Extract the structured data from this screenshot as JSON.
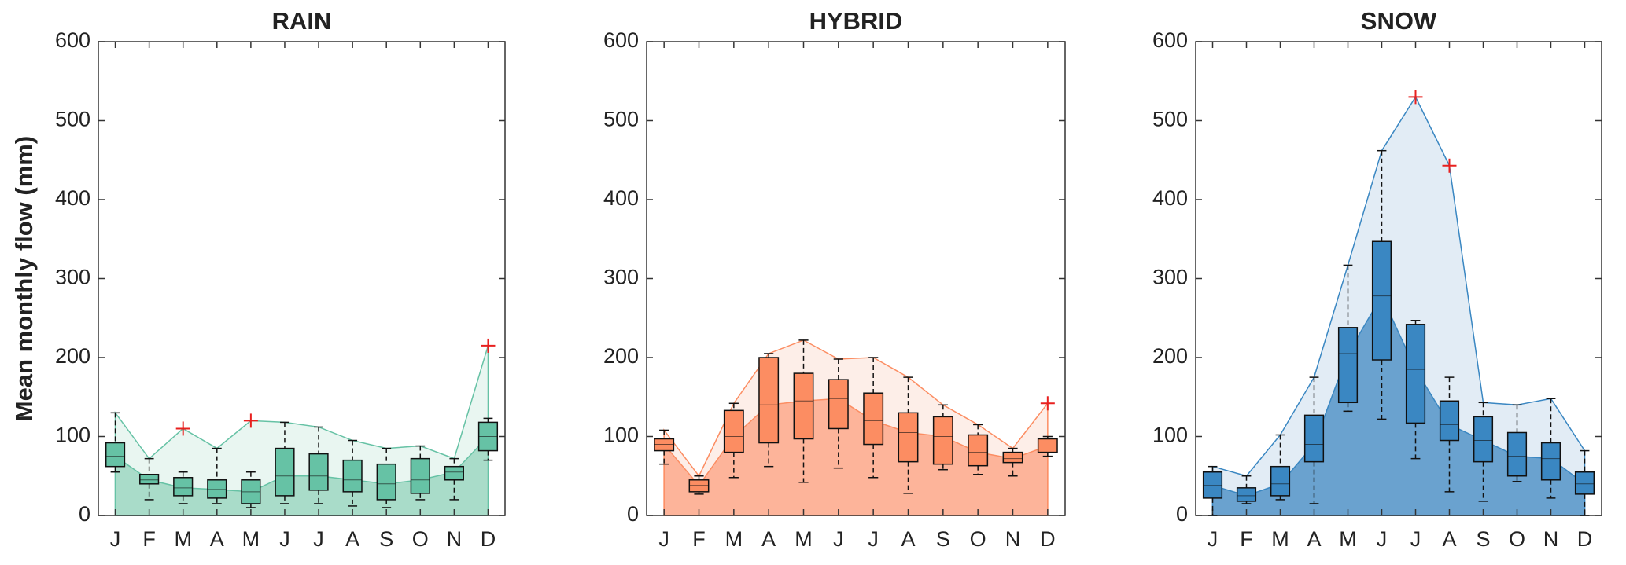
{
  "chart_data": [
    {
      "type": "box",
      "title": "RAIN",
      "ylabel": "Mean monthly flow (mm)",
      "categories": [
        "J",
        "F",
        "M",
        "A",
        "M",
        "J",
        "J",
        "A",
        "S",
        "O",
        "N",
        "D"
      ],
      "min": [
        55,
        20,
        15,
        15,
        10,
        15,
        15,
        12,
        10,
        20,
        20,
        70
      ],
      "q1": [
        62,
        40,
        25,
        22,
        15,
        25,
        32,
        30,
        20,
        28,
        45,
        82
      ],
      "median": [
        75,
        45,
        35,
        33,
        30,
        50,
        50,
        45,
        40,
        45,
        55,
        100
      ],
      "q3": [
        92,
        52,
        48,
        45,
        45,
        85,
        78,
        70,
        65,
        72,
        62,
        118
      ],
      "max": [
        130,
        72,
        55,
        85,
        55,
        118,
        112,
        95,
        85,
        88,
        72,
        123
      ],
      "outliers": [
        [],
        [],
        [
          110
        ],
        [],
        [
          120
        ],
        [],
        [],
        [],
        [],
        [],
        [],
        [
          215
        ]
      ],
      "color": "#66c2a5",
      "area_color": "#a9dcc9",
      "envelope_color": "#e9f6f1",
      "ylim": [
        0,
        600
      ],
      "yticks": [
        0,
        100,
        200,
        300,
        400,
        500,
        600
      ]
    },
    {
      "type": "box",
      "title": "HYBRID",
      "categories": [
        "J",
        "F",
        "M",
        "A",
        "M",
        "J",
        "J",
        "A",
        "S",
        "O",
        "N",
        "D"
      ],
      "min": [
        65,
        27,
        48,
        62,
        42,
        60,
        48,
        28,
        58,
        52,
        50,
        75
      ],
      "q1": [
        82,
        30,
        80,
        92,
        97,
        110,
        90,
        68,
        65,
        63,
        67,
        80
      ],
      "median": [
        90,
        38,
        100,
        140,
        145,
        148,
        120,
        105,
        100,
        80,
        72,
        88
      ],
      "q3": [
        97,
        45,
        133,
        200,
        180,
        172,
        155,
        130,
        125,
        102,
        80,
        97
      ],
      "max": [
        108,
        50,
        142,
        205,
        222,
        198,
        200,
        175,
        140,
        115,
        85,
        100
      ],
      "outliers": [
        [],
        [],
        [],
        [],
        [],
        [],
        [],
        [],
        [],
        [],
        [],
        [
          142
        ]
      ],
      "color": "#fc8d62",
      "area_color": "#fdb49a",
      "envelope_color": "#fdeee8",
      "ylim": [
        0,
        600
      ],
      "yticks": [
        0,
        100,
        200,
        300,
        400,
        500,
        600
      ]
    },
    {
      "type": "box",
      "title": "SNOW",
      "categories": [
        "J",
        "F",
        "M",
        "A",
        "M",
        "J",
        "J",
        "A",
        "S",
        "O",
        "N",
        "D"
      ],
      "min": [
        0,
        15,
        20,
        15,
        132,
        122,
        72,
        30,
        18,
        43,
        22,
        0
      ],
      "q1": [
        22,
        18,
        25,
        68,
        143,
        197,
        117,
        95,
        68,
        50,
        45,
        27
      ],
      "median": [
        38,
        25,
        40,
        90,
        205,
        278,
        185,
        115,
        95,
        75,
        72,
        40
      ],
      "q3": [
        55,
        35,
        62,
        127,
        238,
        347,
        242,
        145,
        125,
        105,
        92,
        55
      ],
      "max": [
        62,
        50,
        102,
        175,
        317,
        462,
        247,
        175,
        143,
        140,
        148,
        82
      ],
      "outliers": [
        [],
        [],
        [],
        [],
        [],
        [],
        [
          530
        ],
        [
          443
        ],
        [],
        [],
        [],
        []
      ],
      "color": "#3a87c2",
      "area_color": "#6aa2cf",
      "envelope_color": "#e2ecf5",
      "ylim": [
        0,
        600
      ],
      "yticks": [
        0,
        100,
        200,
        300,
        400,
        500,
        600
      ]
    }
  ]
}
